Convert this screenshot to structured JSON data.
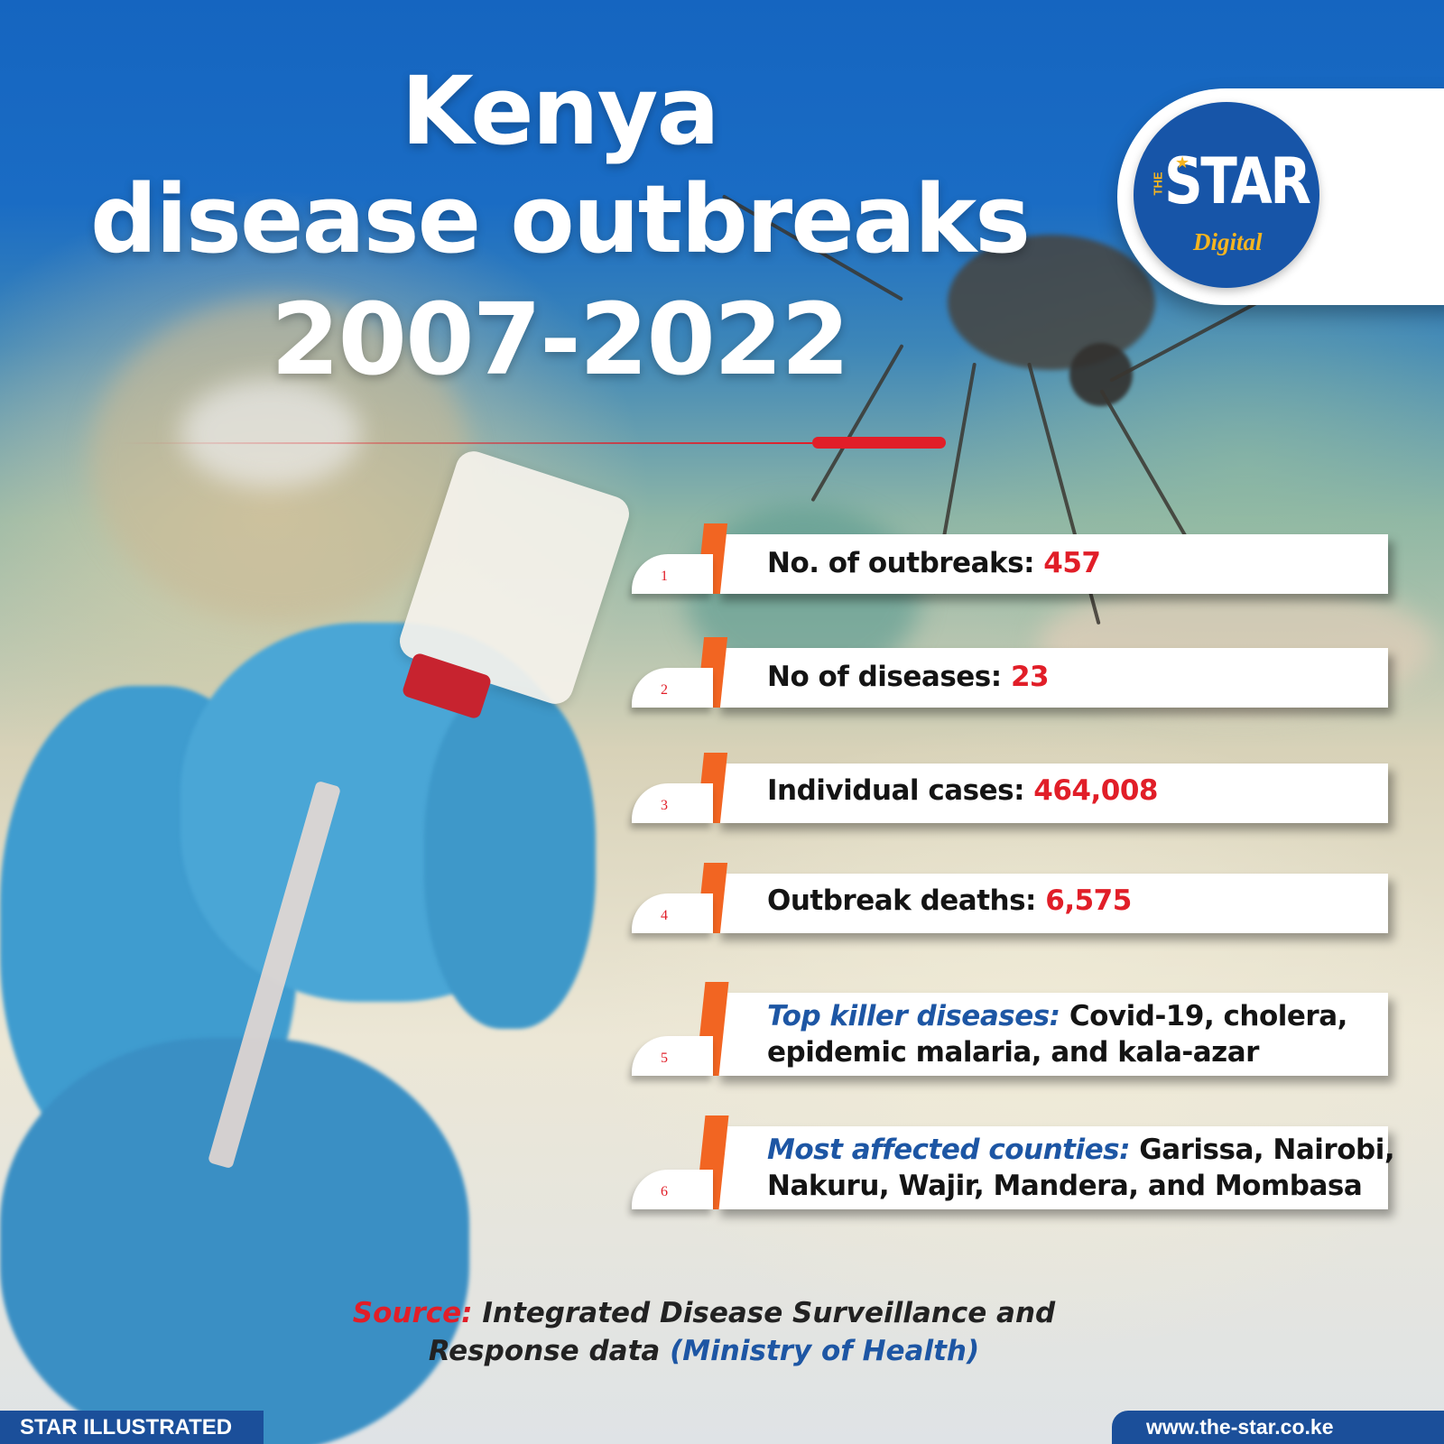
{
  "title": {
    "line1": "Kenya",
    "line2": "disease outbreaks",
    "line3": "2007-2022"
  },
  "logo": {
    "the": "THE",
    "star": "STAR",
    "digital": "Digital"
  },
  "stats": [
    {
      "number": "1",
      "label": "No. of outbreaks: ",
      "value": "457"
    },
    {
      "number": "2",
      "label": "No of diseases: ",
      "value": "23"
    },
    {
      "number": "3",
      "label": "Individual cases: ",
      "value": "464,008"
    },
    {
      "number": "4",
      "label": "Outbreak deaths: ",
      "value": "6,575"
    },
    {
      "number": "5",
      "label": "Top killer diseases:",
      "line1": " Covid-19, cholera,",
      "line2": "epidemic malaria, and kala-azar"
    },
    {
      "number": "6",
      "label": "Most affected counties:",
      "line1": " Garissa, Nairobi,",
      "line2": "Nakuru, Wajir, Mandera, and Mombasa"
    }
  ],
  "source": {
    "label": "Source:",
    "line1": " Integrated Disease Surveillance and",
    "line2": "Response data ",
    "ministry": "(Ministry of Health)"
  },
  "footer": {
    "left": "STAR ILLUSTRATED",
    "right": "www.the-star.co.ke"
  },
  "colors": {
    "brand_blue": "#1b4f9a",
    "accent_red": "#e11e28",
    "stripe_orange": "#f26522",
    "logo_yellow": "#f6b51f"
  },
  "icons": {
    "logo": "the-star-digital-logo"
  }
}
